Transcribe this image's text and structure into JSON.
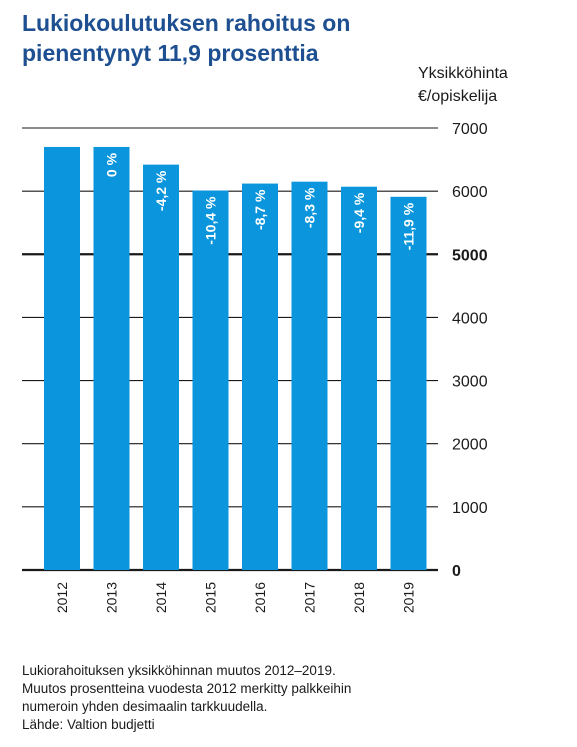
{
  "chart_data": {
    "type": "bar",
    "title_lines": [
      "Lukiokoulutuksen rahoitus on",
      "pienentynyt 11,9 prosenttia"
    ],
    "ylabel_lines": [
      "Yksikköhinta",
      "€/opiskelija"
    ],
    "categories": [
      "2012",
      "2013",
      "2014",
      "2015",
      "2016",
      "2017",
      "2018",
      "2019"
    ],
    "values": [
      6700,
      6700,
      6420,
      6010,
      6120,
      6150,
      6070,
      5910
    ],
    "change_labels": [
      "",
      "0 %",
      "-4,2 %",
      "-10,4 %",
      "-8,7 %",
      "-8,3 %",
      "-9,4 %",
      "-11,9 %"
    ],
    "yticks": [
      0,
      1000,
      2000,
      3000,
      4000,
      5000,
      6000,
      7000
    ],
    "ytick_labels": [
      "0",
      "1000",
      "2000",
      "3000",
      "4000",
      "5000",
      "6000",
      "7000"
    ],
    "bold_ticks": [
      0,
      5000
    ],
    "ylim": [
      0,
      7000
    ],
    "grid": true,
    "bar_color": "#0a95dc",
    "label_color": "#ffffff",
    "title_color": "#1d4f91"
  },
  "footnote_lines": [
    "Lukiorahoituksen yksikköhinnan muutos 2012–2019.",
    "Muutos prosentteina vuodesta 2012 merkitty palkkeihin",
    "numeroin yhden desimaalin tarkkuudella.",
    "Lähde: Valtion budjetti"
  ]
}
